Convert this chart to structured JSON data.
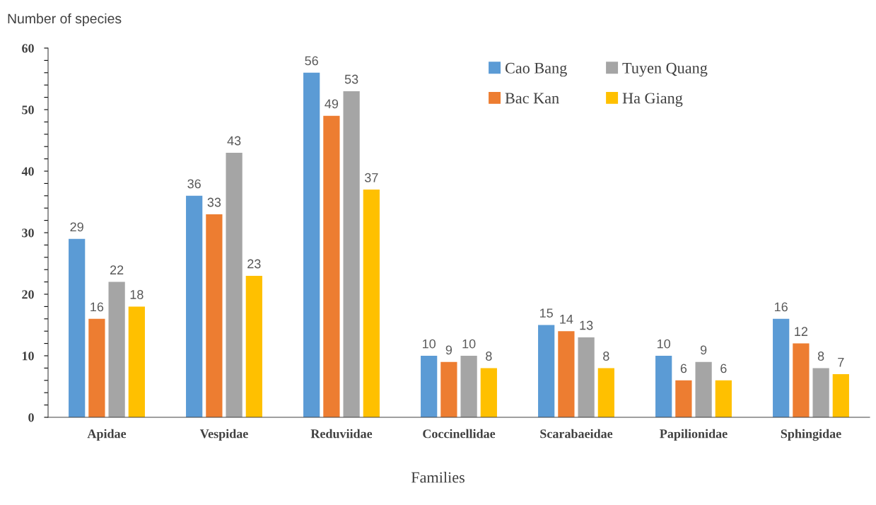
{
  "chart_data": {
    "type": "bar",
    "xlabel": "Families",
    "ylabel": "Number of species",
    "categories": [
      "Apidae",
      "Vespidae",
      "Reduviidae",
      "Coccinellidae",
      "Scarabaeidae",
      "Papilionidae",
      "Sphingidae"
    ],
    "series": [
      {
        "name": "Cao Bang",
        "color": "#5b9bd5",
        "values": [
          29,
          36,
          56,
          10,
          15,
          10,
          16
        ]
      },
      {
        "name": "Bac Kan",
        "color": "#ed7d31",
        "values": [
          16,
          33,
          49,
          9,
          14,
          6,
          12
        ]
      },
      {
        "name": "Tuyen Quang",
        "color": "#a5a5a5",
        "values": [
          22,
          43,
          53,
          10,
          13,
          9,
          8
        ]
      },
      {
        "name": "Ha Giang",
        "color": "#ffc000",
        "values": [
          18,
          23,
          37,
          8,
          8,
          6,
          7
        ]
      }
    ],
    "ylim": [
      0,
      60
    ],
    "yticks": [
      0,
      {
        "value": 2,
        "label": null
      },
      {
        "value": 4,
        "label": null
      },
      {
        "value": 6,
        "label": null
      },
      {
        "value": 8,
        "label": null
      },
      10,
      {
        "value": 12,
        "label": null
      },
      {
        "value": 14,
        "label": null
      },
      {
        "value": 16,
        "label": null
      },
      {
        "value": 18,
        "label": null
      },
      20,
      {
        "value": 22,
        "label": null
      },
      {
        "value": 24,
        "label": null
      },
      {
        "value": 26,
        "label": null
      },
      {
        "value": 28,
        "label": null
      },
      30,
      {
        "value": 32,
        "label": null
      },
      {
        "value": 34,
        "label": null
      },
      {
        "value": 36,
        "label": null
      },
      {
        "value": 38,
        "label": null
      },
      40,
      {
        "value": 42,
        "label": null
      },
      {
        "value": 44,
        "label": null
      },
      {
        "value": 46,
        "label": null
      },
      {
        "value": 48,
        "label": null
      },
      50,
      {
        "value": 52,
        "label": null
      },
      {
        "value": 54,
        "label": null
      },
      {
        "value": 56,
        "label": null
      },
      {
        "value": 58,
        "label": null
      },
      60
    ],
    "grid": false,
    "legend": "top right",
    "data_labels": true
  }
}
